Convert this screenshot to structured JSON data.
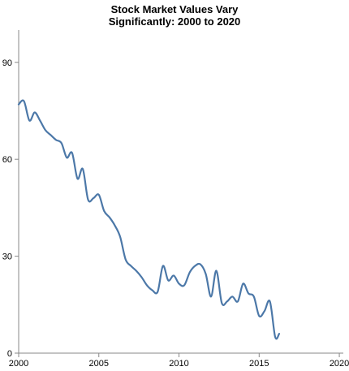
{
  "chart_data": {
    "type": "line",
    "title": [
      "Stock Market Values Vary",
      "Significantly: 2000 to 2020"
    ],
    "xlabel": "",
    "ylabel": "",
    "xlim": [
      2000,
      2020.25
    ],
    "ylim": [
      0,
      100
    ],
    "x_ticks": [
      2000,
      2005,
      2010,
      2015,
      2020
    ],
    "y_ticks": [
      0,
      30,
      60,
      90
    ],
    "grid": false,
    "line_color": "#4c78a8",
    "series": [
      {
        "points": [
          [
            2000.0,
            77
          ],
          [
            2000.33,
            78
          ],
          [
            2000.67,
            72
          ],
          [
            2001.0,
            74.5
          ],
          [
            2001.33,
            72
          ],
          [
            2001.67,
            69
          ],
          [
            2002.0,
            67.5
          ],
          [
            2002.33,
            66
          ],
          [
            2002.67,
            65
          ],
          [
            2003.0,
            60.5
          ],
          [
            2003.33,
            62
          ],
          [
            2003.67,
            54
          ],
          [
            2004.0,
            57
          ],
          [
            2004.33,
            47.5
          ],
          [
            2004.67,
            48
          ],
          [
            2005.0,
            49
          ],
          [
            2005.33,
            44
          ],
          [
            2005.67,
            42
          ],
          [
            2006.0,
            39.5
          ],
          [
            2006.33,
            36
          ],
          [
            2006.67,
            29
          ],
          [
            2007.0,
            27
          ],
          [
            2007.33,
            25.5
          ],
          [
            2007.67,
            23.5
          ],
          [
            2008.0,
            21
          ],
          [
            2008.33,
            19.5
          ],
          [
            2008.67,
            19
          ],
          [
            2009.0,
            27
          ],
          [
            2009.33,
            22.5
          ],
          [
            2009.67,
            24
          ],
          [
            2010.0,
            21.5
          ],
          [
            2010.33,
            21
          ],
          [
            2010.67,
            25
          ],
          [
            2011.0,
            27
          ],
          [
            2011.33,
            27.5
          ],
          [
            2011.67,
            24.5
          ],
          [
            2012.0,
            17.5
          ],
          [
            2012.33,
            25.5
          ],
          [
            2012.67,
            15.5
          ],
          [
            2013.0,
            16
          ],
          [
            2013.33,
            17.5
          ],
          [
            2013.67,
            16
          ],
          [
            2014.0,
            21.5
          ],
          [
            2014.33,
            18.5
          ],
          [
            2014.67,
            17.5
          ],
          [
            2015.0,
            11.5
          ],
          [
            2015.33,
            13
          ],
          [
            2015.67,
            16
          ],
          [
            2016.0,
            5
          ],
          [
            2016.25,
            6
          ]
        ]
      }
    ]
  }
}
